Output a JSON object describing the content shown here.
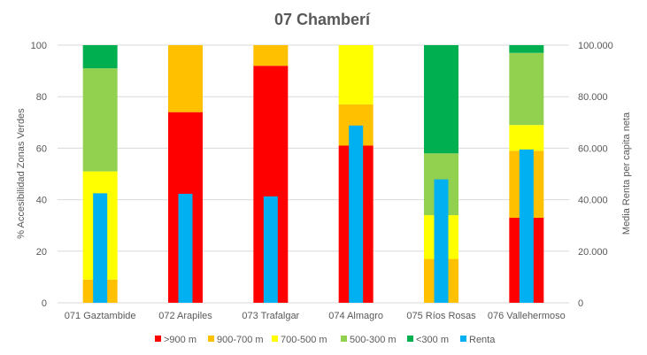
{
  "chart_data": {
    "type": "bar",
    "title": "07 Chamberí",
    "categories": [
      "071 Gaztambide",
      "072 Arapiles",
      "073 Trafalgar",
      "074 Almagro",
      "075 Ríos Rosas",
      "076 Vallehermoso"
    ],
    "ylabel_left": "% Accesibilidad Zonas Verdes",
    "ylabel_right": "Media Renta per capita neta",
    "ylim_left": [
      0,
      100
    ],
    "yticks_left": [
      "0",
      "20",
      "40",
      "60",
      "80",
      "100"
    ],
    "ylim_right": [
      0,
      100000
    ],
    "yticks_right": [
      "0",
      "20.000",
      "40.000",
      "60.000",
      "80.000",
      "100.000"
    ],
    "stacked_series": [
      {
        "name": ">900 m",
        "color": "#ff0000",
        "values": [
          0,
          74,
          92,
          61,
          0,
          33
        ]
      },
      {
        "name": "900-700 m",
        "color": "#ffc000",
        "values": [
          9,
          26,
          8,
          16,
          17,
          26
        ]
      },
      {
        "name": "700-500 m",
        "color": "#ffff00",
        "values": [
          42,
          0,
          0,
          23,
          17,
          10
        ]
      },
      {
        "name": "500-300 m",
        "color": "#92d050",
        "values": [
          40,
          0,
          0,
          0,
          24,
          28
        ]
      },
      {
        "name": "<300 m",
        "color": "#00b050",
        "values": [
          9,
          0,
          0,
          0,
          42,
          3
        ]
      }
    ],
    "secondary_series": {
      "name": "Renta",
      "color": "#00b0f0",
      "axis": "right",
      "values": [
        42500,
        42300,
        41300,
        68800,
        47900,
        59500
      ]
    },
    "grid": true,
    "legend_position": "bottom"
  }
}
